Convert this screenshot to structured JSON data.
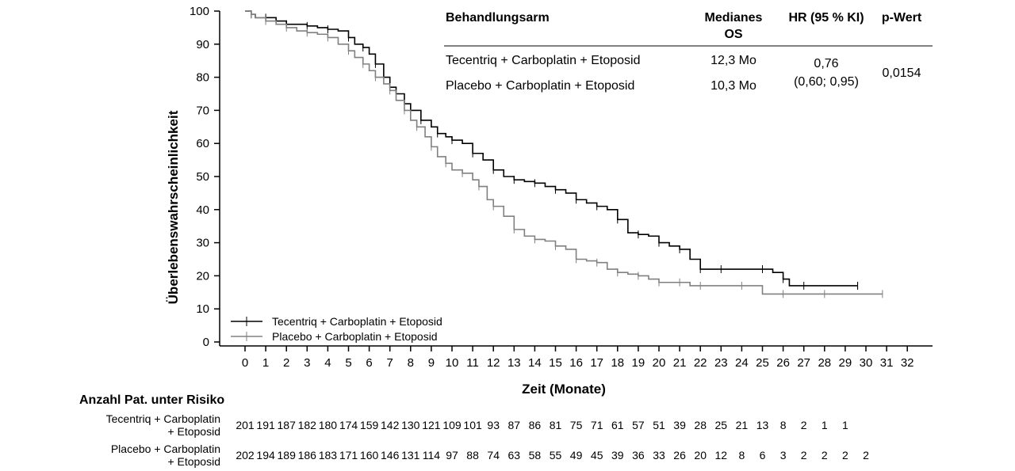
{
  "colors": {
    "tecentriq": "#000000",
    "placebo": "#808080"
  },
  "summary_table": {
    "headers": {
      "arm": "Behandlungsarm",
      "median_line1": "Medianes",
      "median_line2": "OS",
      "hr": "HR (95 % KI)",
      "p": "p-Wert"
    },
    "rows": [
      {
        "arm": "Tecentriq + Carboplatin + Etoposid",
        "median": "12,3 Mo"
      },
      {
        "arm": "Placebo + Carboplatin + Etoposid",
        "median": "10,3 Mo"
      }
    ],
    "hr_value": "0,76",
    "hr_ci": "(0,60; 0,95)",
    "p_value": "0,0154"
  },
  "risk_table": {
    "title": "Anzahl Pat. unter Risiko",
    "rows": [
      {
        "label_line1": "Tecentriq + Carboplatin",
        "label_line2": "+ Etoposid",
        "values": [
          201,
          191,
          187,
          182,
          180,
          174,
          159,
          142,
          130,
          121,
          109,
          101,
          93,
          87,
          86,
          81,
          75,
          71,
          61,
          57,
          51,
          39,
          28,
          25,
          21,
          13,
          8,
          2,
          1,
          1
        ]
      },
      {
        "label_line1": "Placebo + Carboplatin",
        "label_line2": "+ Etoposid",
        "values": [
          202,
          194,
          189,
          186,
          183,
          171,
          160,
          146,
          131,
          114,
          97,
          88,
          74,
          63,
          58,
          55,
          49,
          45,
          39,
          36,
          33,
          26,
          20,
          12,
          8,
          6,
          3,
          2,
          2,
          2,
          2
        ]
      }
    ]
  },
  "chart_data": {
    "type": "line",
    "title": "",
    "xlabel": "Zeit (Monate)",
    "ylabel": "Überlebenswahrscheinlichkeit",
    "xlim": [
      0,
      32
    ],
    "ylim": [
      0,
      100
    ],
    "xticks": [
      0,
      1,
      2,
      3,
      4,
      5,
      6,
      7,
      8,
      9,
      10,
      11,
      12,
      13,
      14,
      15,
      16,
      17,
      18,
      19,
      20,
      21,
      22,
      23,
      24,
      25,
      26,
      27,
      28,
      29,
      30,
      31,
      32
    ],
    "yticks": [
      0,
      10,
      20,
      30,
      40,
      50,
      60,
      70,
      80,
      90,
      100
    ],
    "legend_position": "bottom-left",
    "step": true,
    "series": [
      {
        "name": "Tecentriq + Carboplatin + Etoposid",
        "color": "#000000",
        "x": [
          0,
          0.3,
          0.5,
          1,
          1.5,
          2,
          2.5,
          3,
          3.5,
          4,
          4.5,
          5,
          5.3,
          5.7,
          6,
          6.3,
          6.7,
          7,
          7.3,
          7.7,
          8,
          8.5,
          9,
          9.3,
          9.7,
          10,
          10.5,
          11,
          11.5,
          12,
          12.5,
          13,
          13.5,
          14,
          14.5,
          15,
          15.5,
          16,
          16.5,
          17,
          17.5,
          18,
          18.5,
          19,
          19.5,
          20,
          20.5,
          21,
          21.5,
          22,
          22.5,
          23,
          24,
          25,
          25.5,
          26,
          26.3,
          27,
          28,
          29.6
        ],
        "y": [
          100,
          99,
          98,
          98,
          97,
          96,
          96,
          95.5,
          95,
          94.5,
          94,
          92,
          90,
          89,
          87,
          84,
          80,
          77,
          75,
          72,
          70,
          67,
          65,
          63,
          62,
          61,
          60,
          57,
          55,
          52,
          50,
          49,
          48.5,
          48,
          47,
          46,
          45,
          43,
          42,
          41,
          40,
          37,
          33,
          32.5,
          32,
          30,
          29,
          28,
          25,
          22,
          22,
          22,
          22,
          22,
          21,
          19,
          17,
          17,
          17,
          17
        ]
      },
      {
        "name": "Placebo + Carboplatin + Etoposid",
        "color": "#808080",
        "x": [
          0,
          0.3,
          0.5,
          1,
          1.5,
          2,
          2.5,
          3,
          3.5,
          4,
          4.5,
          5,
          5.3,
          5.7,
          6,
          6.3,
          6.7,
          7,
          7.3,
          7.7,
          8,
          8.3,
          8.7,
          9,
          9.3,
          9.7,
          10,
          10.5,
          11,
          11.3,
          11.7,
          12,
          12.5,
          13,
          13.5,
          14,
          14.5,
          15,
          15.5,
          16,
          16.5,
          17,
          17.5,
          18,
          18.5,
          19,
          19.5,
          20,
          20.5,
          21,
          21.5,
          22,
          23,
          24,
          25,
          26,
          27,
          28,
          30.8
        ],
        "y": [
          100,
          99,
          98,
          97,
          96,
          95,
          94,
          93.5,
          93,
          92,
          90,
          88,
          86,
          84,
          82,
          80,
          78,
          76,
          73,
          70,
          67,
          65,
          62,
          59,
          56,
          54,
          52,
          51,
          49,
          47,
          43,
          41,
          38,
          34,
          32,
          31,
          30.5,
          29,
          28,
          25,
          24.5,
          24,
          22,
          21,
          20.5,
          20,
          19,
          18,
          18,
          18,
          17,
          17,
          17,
          17,
          14.5,
          14.5,
          14.5,
          14.5,
          14.5
        ]
      }
    ]
  }
}
